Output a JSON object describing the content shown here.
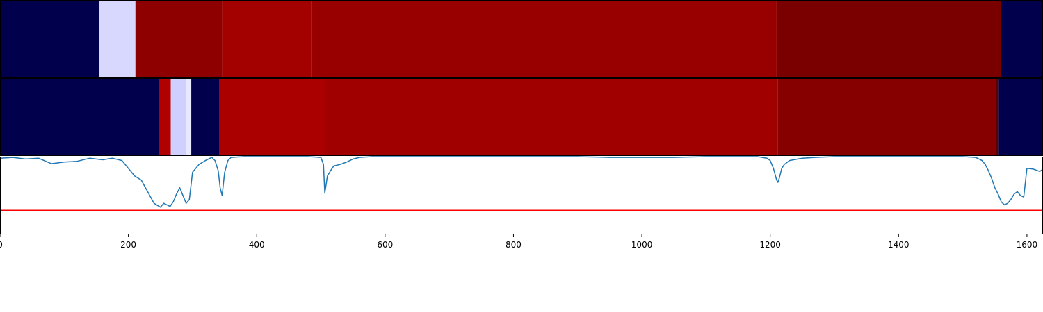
{
  "chart_data": [
    {
      "type": "heatmap",
      "xlim": [
        0,
        1625
      ],
      "segments": [
        {
          "x0": 0,
          "x1": 155,
          "color": "#00004c"
        },
        {
          "x0": 155,
          "x1": 211,
          "color": "#d8d8ff"
        },
        {
          "x0": 211,
          "x1": 346,
          "color": "#8e0000"
        },
        {
          "x0": 346,
          "x1": 485,
          "color": "#a30000"
        },
        {
          "x0": 485,
          "x1": 1210,
          "color": "#980000"
        },
        {
          "x0": 1210,
          "x1": 1560,
          "color": "#7a0000"
        },
        {
          "x0": 1560,
          "x1": 1625,
          "color": "#00004c"
        }
      ]
    },
    {
      "type": "heatmap",
      "xlim": [
        0,
        1625
      ],
      "segments": [
        {
          "x0": 0,
          "x1": 247,
          "color": "#00004c"
        },
        {
          "x0": 247,
          "x1": 266,
          "color": "#b00000"
        },
        {
          "x0": 266,
          "x1": 290,
          "color": "#d0d0ff"
        },
        {
          "x0": 290,
          "x1": 298,
          "color": "#e8e8ff"
        },
        {
          "x0": 298,
          "x1": 342,
          "color": "#00004c"
        },
        {
          "x0": 342,
          "x1": 506,
          "color": "#ab0000"
        },
        {
          "x0": 506,
          "x1": 1212,
          "color": "#a00000"
        },
        {
          "x0": 1212,
          "x1": 1552,
          "color": "#860000"
        },
        {
          "x0": 1552,
          "x1": 1556,
          "color": "#5c0000"
        },
        {
          "x0": 1556,
          "x1": 1625,
          "color": "#00004c"
        }
      ]
    },
    {
      "type": "line",
      "xlim": [
        0,
        1625
      ],
      "ylim": [
        0,
        1
      ],
      "x_ticks": [
        0,
        200,
        400,
        600,
        800,
        1000,
        1200,
        1400,
        1600
      ],
      "x_tick_labels": [
        "0",
        "200",
        "400",
        "600",
        "800",
        "1000",
        "1200",
        "1400",
        "1600"
      ],
      "series": [
        {
          "color": "#1f77b4",
          "x": [
            0,
            20,
            40,
            60,
            80,
            100,
            120,
            140,
            160,
            175,
            190,
            200,
            210,
            220,
            230,
            240,
            250,
            255,
            260,
            265,
            270,
            275,
            280,
            290,
            295,
            300,
            310,
            320,
            330,
            335,
            340,
            343,
            346,
            350,
            355,
            360,
            380,
            400,
            420,
            440,
            460,
            480,
            500,
            504,
            506,
            510,
            515,
            520,
            530,
            540,
            550,
            560,
            580,
            600,
            650,
            700,
            750,
            800,
            850,
            900,
            950,
            1000,
            1050,
            1100,
            1150,
            1180,
            1195,
            1200,
            1205,
            1210,
            1212,
            1214,
            1218,
            1222,
            1230,
            1250,
            1270,
            1300,
            1350,
            1400,
            1450,
            1500,
            1520,
            1530,
            1535,
            1540,
            1545,
            1550,
            1555,
            1560,
            1565,
            1570,
            1575,
            1580,
            1585,
            1590,
            1595,
            1600,
            1610,
            1620,
            1625
          ],
          "y": [
            0.98,
            0.99,
            0.97,
            0.98,
            0.91,
            0.93,
            0.94,
            0.98,
            0.96,
            0.98,
            0.95,
            0.85,
            0.75,
            0.7,
            0.55,
            0.4,
            0.35,
            0.4,
            0.38,
            0.36,
            0.42,
            0.52,
            0.6,
            0.4,
            0.45,
            0.8,
            0.9,
            0.95,
            0.99,
            0.95,
            0.82,
            0.6,
            0.5,
            0.8,
            0.95,
            0.99,
            1.0,
            1.0,
            1.0,
            1.0,
            1.0,
            1.0,
            0.99,
            0.9,
            0.53,
            0.75,
            0.82,
            0.88,
            0.9,
            0.93,
            0.97,
            0.99,
            1.0,
            1.0,
            1.0,
            1.0,
            1.0,
            1.0,
            1.0,
            1.0,
            0.99,
            0.99,
            0.99,
            1.0,
            1.0,
            1.0,
            0.98,
            0.95,
            0.85,
            0.7,
            0.67,
            0.72,
            0.85,
            0.9,
            0.95,
            0.98,
            0.99,
            1.0,
            1.0,
            1.0,
            1.0,
            1.0,
            0.99,
            0.95,
            0.9,
            0.82,
            0.72,
            0.6,
            0.52,
            0.42,
            0.38,
            0.4,
            0.45,
            0.52,
            0.55,
            0.5,
            0.48,
            0.85,
            0.84,
            0.81,
            0.84
          ]
        },
        {
          "color": "#ff0000",
          "x": [
            0,
            1625
          ],
          "y": [
            0.31,
            0.31
          ]
        }
      ]
    }
  ]
}
